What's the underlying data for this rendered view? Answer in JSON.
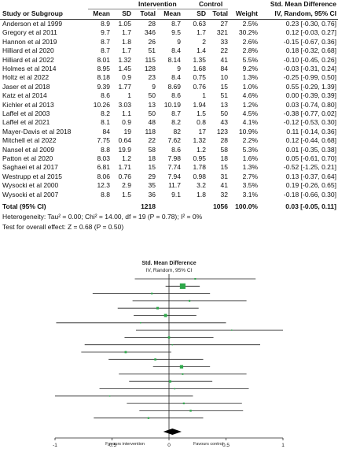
{
  "chart_data": {
    "type": "forest",
    "headers": {
      "intervention": "Intervention",
      "control": "Control",
      "smd_title": "Std. Mean Difference",
      "study": "Study or Subgroup",
      "mean1": "Mean",
      "sd1": "SD",
      "total1": "Total",
      "mean2": "Mean",
      "sd2": "SD",
      "total2": "Total",
      "weight": "Weight",
      "ci": "IV, Random, 95% CI"
    },
    "studies": [
      {
        "name": "Anderson et al 1999",
        "mean1": "8.9",
        "sd1": "1.05",
        "n1": "28",
        "mean2": "8.7",
        "sd2": "0.63",
        "n2": "27",
        "weight": "2.5%",
        "ci": "0.23 [-0.30, 0.76]",
        "smd": 0.23,
        "lo": -0.3,
        "hi": 0.76
      },
      {
        "name": "Gregory et al 2011",
        "mean1": "9.7",
        "sd1": "1.7",
        "n1": "346",
        "mean2": "9.5",
        "sd2": "1.7",
        "n2": "321",
        "weight": "30.2%",
        "ci": "0.12 [-0.03, 0.27]",
        "smd": 0.12,
        "lo": -0.03,
        "hi": 0.27
      },
      {
        "name": "Hannon et al 2019",
        "mean1": "8.7",
        "sd1": "1.8",
        "n1": "26",
        "mean2": "9",
        "sd2": "2",
        "n2": "33",
        "weight": "2.6%",
        "ci": "-0.15 [-0.67, 0.36]",
        "smd": -0.15,
        "lo": -0.67,
        "hi": 0.36
      },
      {
        "name": "Hilliard et al 2020",
        "mean1": "8.7",
        "sd1": "1.7",
        "n1": "51",
        "mean2": "8.4",
        "sd2": "1.4",
        "n2": "22",
        "weight": "2.8%",
        "ci": "0.18 [-0.32, 0.68]",
        "smd": 0.18,
        "lo": -0.32,
        "hi": 0.68
      },
      {
        "name": "Hilliard et al 2022",
        "mean1": "8.01",
        "sd1": "1.32",
        "n1": "115",
        "mean2": "8.14",
        "sd2": "1.35",
        "n2": "41",
        "weight": "5.5%",
        "ci": "-0.10 [-0.45, 0.26]",
        "smd": -0.1,
        "lo": -0.45,
        "hi": 0.26
      },
      {
        "name": "Holmes et al 2014",
        "mean1": "8.95",
        "sd1": "1.45",
        "n1": "128",
        "mean2": "9",
        "sd2": "1.68",
        "n2": "84",
        "weight": "9.2%",
        "ci": "-0.03 [-0.31, 0.24]",
        "smd": -0.03,
        "lo": -0.31,
        "hi": 0.24
      },
      {
        "name": "Holtz et al 2022",
        "mean1": "8.18",
        "sd1": "0.9",
        "n1": "23",
        "mean2": "8.4",
        "sd2": "0.75",
        "n2": "10",
        "weight": "1.3%",
        "ci": "-0.25 [-0.99, 0.50]",
        "smd": -0.25,
        "lo": -0.99,
        "hi": 0.5
      },
      {
        "name": "Jaser et al 2018",
        "mean1": "9.39",
        "sd1": "1.77",
        "n1": "9",
        "mean2": "8.69",
        "sd2": "0.76",
        "n2": "15",
        "weight": "1.0%",
        "ci": "0.55 [-0.29, 1.39]",
        "smd": 0.55,
        "lo": -0.29,
        "hi": 1.39
      },
      {
        "name": "Katz et al 2014",
        "mean1": "8.6",
        "sd1": "1",
        "n1": "50",
        "mean2": "8.6",
        "sd2": "1",
        "n2": "51",
        "weight": "4.6%",
        "ci": "0.00 [-0.39, 0.39]",
        "smd": 0.0,
        "lo": -0.39,
        "hi": 0.39
      },
      {
        "name": "Kichler et al 2013",
        "mean1": "10.26",
        "sd1": "3.03",
        "n1": "13",
        "mean2": "10.19",
        "sd2": "1.94",
        "n2": "13",
        "weight": "1.2%",
        "ci": "0.03 [-0.74, 0.80]",
        "smd": 0.03,
        "lo": -0.74,
        "hi": 0.8
      },
      {
        "name": "Laffel et al 2003",
        "mean1": "8.2",
        "sd1": "1.1",
        "n1": "50",
        "mean2": "8.7",
        "sd2": "1.5",
        "n2": "50",
        "weight": "4.5%",
        "ci": "-0.38 [-0.77, 0.02]",
        "smd": -0.38,
        "lo": -0.77,
        "hi": 0.02
      },
      {
        "name": "Laffel et al 2021",
        "mean1": "8.1",
        "sd1": "0.9",
        "n1": "48",
        "mean2": "8.2",
        "sd2": "0.8",
        "n2": "43",
        "weight": "4.1%",
        "ci": "-0.12 [-0.53, 0.30]",
        "smd": -0.12,
        "lo": -0.53,
        "hi": 0.3
      },
      {
        "name": "Mayer-Davis et al 2018",
        "mean1": "84",
        "sd1": "19",
        "n1": "118",
        "mean2": "82",
        "sd2": "17",
        "n2": "123",
        "weight": "10.9%",
        "ci": "0.11 [-0.14, 0.36]",
        "smd": 0.11,
        "lo": -0.14,
        "hi": 0.36
      },
      {
        "name": "Mitchell et al 2022",
        "mean1": "7.75",
        "sd1": "0.64",
        "n1": "22",
        "mean2": "7.62",
        "sd2": "1.32",
        "n2": "28",
        "weight": "2.2%",
        "ci": "0.12 [-0.44, 0.68]",
        "smd": 0.12,
        "lo": -0.44,
        "hi": 0.68
      },
      {
        "name": "Nansel et al 2009",
        "mean1": "8.8",
        "sd1": "19.9",
        "n1": "58",
        "mean2": "8.6",
        "sd2": "1.2",
        "n2": "58",
        "weight": "5.3%",
        "ci": "0.01 [-0.35, 0.38]",
        "smd": 0.01,
        "lo": -0.35,
        "hi": 0.38
      },
      {
        "name": "Patton et al 2020",
        "mean1": "8.03",
        "sd1": "1.2",
        "n1": "18",
        "mean2": "7.98",
        "sd2": "0.95",
        "n2": "18",
        "weight": "1.6%",
        "ci": "0.05 [-0.61, 0.70]",
        "smd": 0.05,
        "lo": -0.61,
        "hi": 0.7
      },
      {
        "name": "Saghaei et al 2017",
        "mean1": "6.81",
        "sd1": "1.71",
        "n1": "15",
        "mean2": "7.74",
        "sd2": "1.78",
        "n2": "15",
        "weight": "1.3%",
        "ci": "-0.52 [-1.25, 0.21]",
        "smd": -0.52,
        "lo": -1.25,
        "hi": 0.21
      },
      {
        "name": "Westrupp et al 2015",
        "mean1": "8.06",
        "sd1": "0.76",
        "n1": "29",
        "mean2": "7.94",
        "sd2": "0.98",
        "n2": "31",
        "weight": "2.7%",
        "ci": "0.13 [-0.37, 0.64]",
        "smd": 0.13,
        "lo": -0.37,
        "hi": 0.64
      },
      {
        "name": "Wysocki et al 2000",
        "mean1": "12.3",
        "sd1": "2.9",
        "n1": "35",
        "mean2": "11.7",
        "sd2": "3.2",
        "n2": "41",
        "weight": "3.5%",
        "ci": "0.19 [-0.26, 0.65]",
        "smd": 0.19,
        "lo": -0.26,
        "hi": 0.65
      },
      {
        "name": "Wysocki et al 2007",
        "mean1": "8.8",
        "sd1": "1.5",
        "n1": "36",
        "mean2": "9.1",
        "sd2": "1.8",
        "n2": "32",
        "weight": "3.1%",
        "ci": "-0.18 [-0.66, 0.30]",
        "smd": -0.18,
        "lo": -0.66,
        "hi": 0.3
      }
    ],
    "total": {
      "label": "Total (95% CI)",
      "n1": "1218",
      "n2": "1056",
      "weight": "100.0%",
      "ci": "0.03 [-0.05, 0.11]",
      "smd": 0.03,
      "lo": -0.05,
      "hi": 0.11
    },
    "heterogeneity": "Heterogeneity: Tau² = 0.00; Chi² = 14.00, df = 19 (P = 0.78); I² = 0%",
    "overall_effect": "Test for overall effect: Z = 0.68 (P = 0.50)",
    "plot": {
      "title": "Std. Mean Difference",
      "subtitle": "IV, Random, 95% CI",
      "xlim": [
        -1,
        1
      ],
      "ticks": [
        -1,
        -0.5,
        0,
        0.5,
        1
      ],
      "tick_labels": [
        "-1",
        "-0.5",
        "0",
        "0.5",
        "1"
      ],
      "left_caption": "Favours intervention",
      "right_caption": "Favours control"
    },
    "colors": {
      "marker": "#2ea84a",
      "text": "#111111",
      "line": "#222222"
    }
  }
}
